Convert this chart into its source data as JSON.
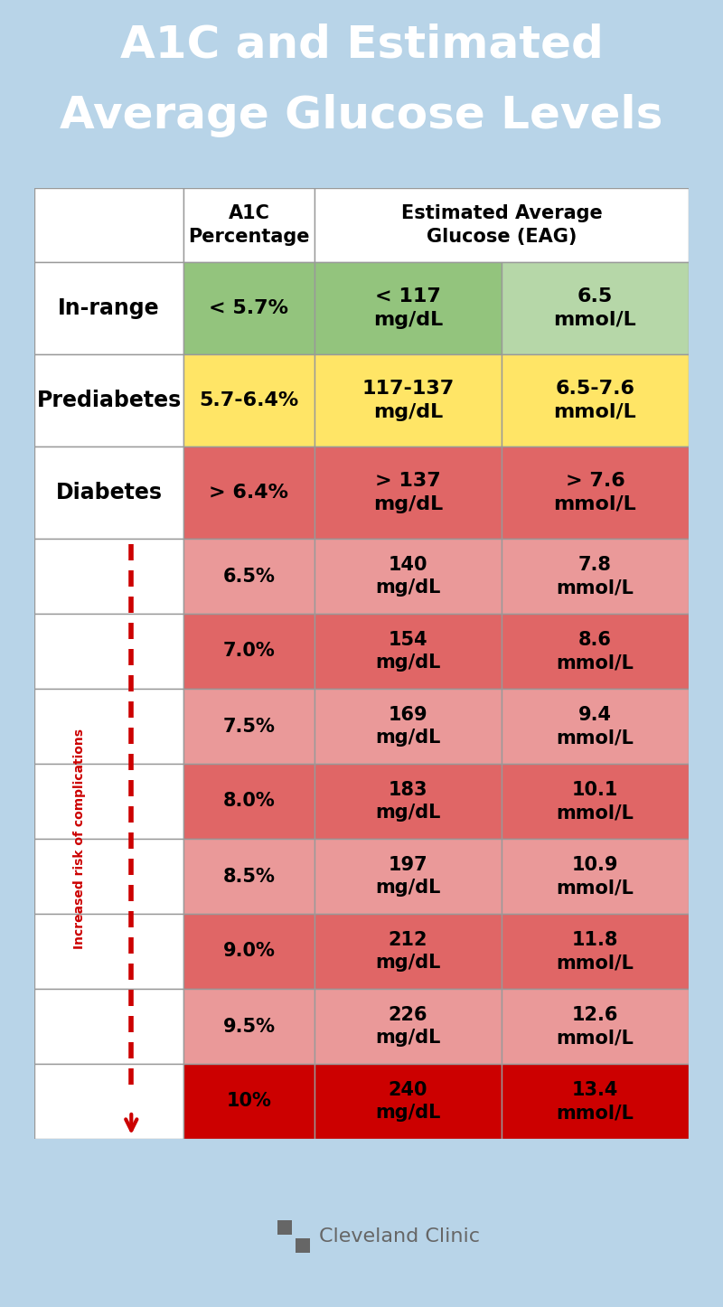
{
  "title_line1": "A1C and Estimated",
  "title_line2": "Average Glucose Levels",
  "title_bg": "#1a96d4",
  "title_text_color": "#ffffff",
  "outer_bg": "#b8d4e8",
  "footer_bg": "#ffffff",
  "summary_rows": [
    {
      "label": "In-range",
      "a1c": "< 5.7%",
      "mgdl": "< 117\nmg/dL",
      "mmol": "6.5\nmmol/L",
      "label_bg": "#ffffff",
      "a1c_bg": "#93c47d",
      "mgdl_bg": "#93c47d",
      "mmol_bg": "#b6d7a8",
      "text_color": "#000000"
    },
    {
      "label": "Prediabetes",
      "a1c": "5.7-6.4%",
      "mgdl": "117-137\nmg/dL",
      "mmol": "6.5-7.6\nmmol/L",
      "label_bg": "#ffffff",
      "a1c_bg": "#ffe566",
      "mgdl_bg": "#ffe566",
      "mmol_bg": "#ffe566",
      "text_color": "#000000"
    },
    {
      "label": "Diabetes",
      "a1c": "> 6.4%",
      "mgdl": "> 137\nmg/dL",
      "mmol": "> 7.6\nmmol/L",
      "label_bg": "#ffffff",
      "a1c_bg": "#e06666",
      "mgdl_bg": "#e06666",
      "mmol_bg": "#e06666",
      "text_color": "#000000"
    }
  ],
  "detail_rows": [
    {
      "a1c": "6.5%",
      "mgdl": "140\nmg/dL",
      "mmol": "7.8\nmmol/L",
      "bg": "#ea9999"
    },
    {
      "a1c": "7.0%",
      "mgdl": "154\nmg/dL",
      "mmol": "8.6\nmmol/L",
      "bg": "#e06666"
    },
    {
      "a1c": "7.5%",
      "mgdl": "169\nmg/dL",
      "mmol": "9.4\nmmol/L",
      "bg": "#ea9999"
    },
    {
      "a1c": "8.0%",
      "mgdl": "183\nmg/dL",
      "mmol": "10.1\nmmol/L",
      "bg": "#e06666"
    },
    {
      "a1c": "8.5%",
      "mgdl": "197\nmg/dL",
      "mmol": "10.9\nmmol/L",
      "bg": "#ea9999"
    },
    {
      "a1c": "9.0%",
      "mgdl": "212\nmg/dL",
      "mmol": "11.8\nmmol/L",
      "bg": "#e06666"
    },
    {
      "a1c": "9.5%",
      "mgdl": "226\nmg/dL",
      "mmol": "12.6\nmmol/L",
      "bg": "#ea9999"
    },
    {
      "a1c": "10%",
      "mgdl": "240\nmg/dL",
      "mmol": "13.4\nmmol/L",
      "bg": "#cc0000"
    }
  ],
  "risk_label": "Increased risk of complications",
  "risk_color": "#cc0000",
  "border_color": "#999999",
  "border_lw": 1.0
}
